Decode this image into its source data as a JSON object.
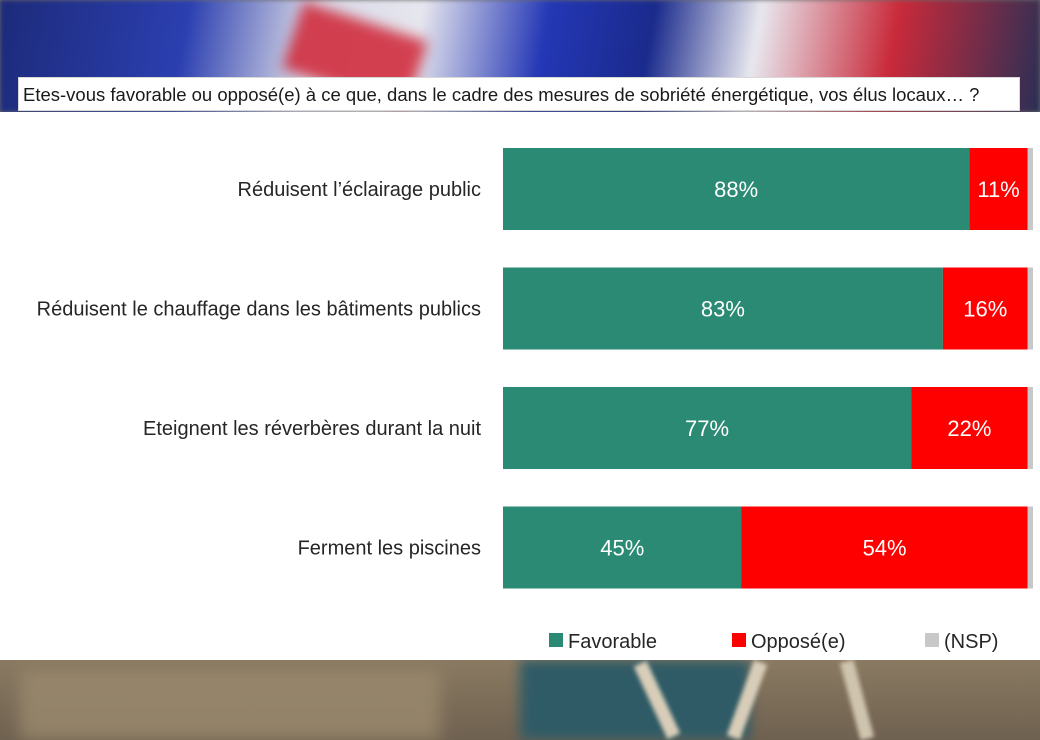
{
  "question": "Etes-vous favorable ou opposé(e) à ce que, dans le cadre des mesures de sobriété énergétique, vos élus locaux… ?",
  "colors": {
    "favorable": "#2a8a74",
    "oppose": "#ff0000",
    "nsp": "#c8c8c8"
  },
  "chart_data": {
    "type": "bar",
    "orientation": "horizontal",
    "stacked": true,
    "categories": [
      "Réduisent l’éclairage public",
      "Réduisent le chauffage dans les bâtiments publics",
      "Eteignent les réverbères durant la nuit",
      "Ferment les piscines"
    ],
    "series": [
      {
        "name": "Favorable",
        "values": [
          88,
          83,
          77,
          45
        ],
        "labels": [
          "88%",
          "83%",
          "77%",
          "45%"
        ]
      },
      {
        "name": "Opposé(e)",
        "values": [
          11,
          16,
          22,
          54
        ],
        "labels": [
          "11%",
          "16%",
          "22%",
          "54%"
        ]
      },
      {
        "name": "(NSP)",
        "values": [
          1,
          1,
          1,
          1
        ]
      }
    ],
    "xlim": [
      0,
      100
    ],
    "legend": "bottom-right",
    "grid": false
  }
}
